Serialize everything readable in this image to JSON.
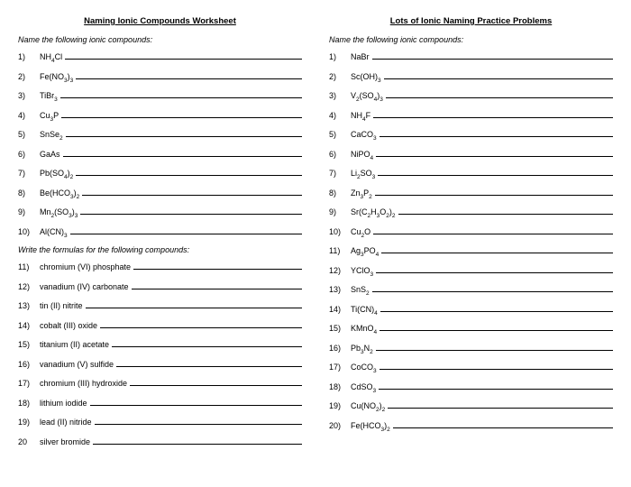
{
  "left": {
    "title": "Naming Ionic Compounds  Worksheet",
    "section1_instruction": "Name the following ionic compounds:",
    "section1_items": [
      {
        "n": "1)",
        "f": "NH<sub>4</sub>Cl"
      },
      {
        "n": "2)",
        "f": "Fe(NO<sub>3</sub>)<sub>3</sub>"
      },
      {
        "n": "3)",
        "f": "TiBr<sub>3</sub>"
      },
      {
        "n": "4)",
        "f": "Cu<sub>3</sub>P"
      },
      {
        "n": "5)",
        "f": "SnSe<sub>2</sub>"
      },
      {
        "n": "6)",
        "f": "GaAs"
      },
      {
        "n": "7)",
        "f": "Pb(SO<sub>4</sub>)<sub>2</sub>"
      },
      {
        "n": "8)",
        "f": "Be(HCO<sub>3</sub>)<sub>2</sub>"
      },
      {
        "n": "9)",
        "f": "Mn<sub>2</sub>(SO<sub>3</sub>)<sub>3</sub>"
      },
      {
        "n": "10)",
        "f": "Al(CN)<sub>3</sub>"
      }
    ],
    "section2_instruction": "Write the formulas for the following compounds:",
    "section2_items": [
      {
        "n": "11)",
        "f": "chromium (VI) phosphate"
      },
      {
        "n": "12)",
        "f": "vanadium (IV) carbonate"
      },
      {
        "n": "13)",
        "f": "tin (II) nitrite"
      },
      {
        "n": "14)",
        "f": "cobalt (III) oxide"
      },
      {
        "n": "15)",
        "f": "titanium (II) acetate"
      },
      {
        "n": "16)",
        "f": "vanadium (V) sulfide"
      },
      {
        "n": "17)",
        "f": "chromium (III) hydroxide"
      },
      {
        "n": "18)",
        "f": "lithium iodide"
      },
      {
        "n": "19)",
        "f": "lead (II) nitride"
      },
      {
        "n": "20",
        "f": "silver bromide"
      }
    ]
  },
  "right": {
    "title": "Lots of Ionic Naming Practice Problems",
    "instruction": "Name the following ionic compounds:",
    "items": [
      {
        "n": "1)",
        "f": "NaBr"
      },
      {
        "n": "2)",
        "f": "Sc(OH)<sub>3</sub>"
      },
      {
        "n": "3)",
        "f": "V<sub>2</sub>(SO<sub>4</sub>)<sub>3</sub>"
      },
      {
        "n": "4)",
        "f": "NH<sub>4</sub>F"
      },
      {
        "n": "5)",
        "f": "CaCO<sub>3</sub>"
      },
      {
        "n": "6)",
        "f": "NiPO<sub>4</sub>"
      },
      {
        "n": "7)",
        "f": "Li<sub>2</sub>SO<sub>3</sub>"
      },
      {
        "n": "8)",
        "f": "Zn<sub>3</sub>P<sub>2</sub>"
      },
      {
        "n": "9)",
        "f": "Sr(C<sub>2</sub>H<sub>3</sub>O<sub>2</sub>)<sub>2</sub>"
      },
      {
        "n": "10)",
        "f": "Cu<sub>2</sub>O"
      },
      {
        "n": "11)",
        "f": "Ag<sub>3</sub>PO<sub>4</sub>"
      },
      {
        "n": "12)",
        "f": "YClO<sub>3</sub>"
      },
      {
        "n": "13)",
        "f": "SnS<sub>2</sub>"
      },
      {
        "n": "14)",
        "f": "Ti(CN)<sub>4</sub>"
      },
      {
        "n": "15)",
        "f": "KMnO<sub>4</sub>"
      },
      {
        "n": "16)",
        "f": "Pb<sub>3</sub>N<sub>2</sub>"
      },
      {
        "n": "17)",
        "f": "CoCO<sub>3</sub>"
      },
      {
        "n": "18)",
        "f": "CdSO<sub>3</sub>"
      },
      {
        "n": "19)",
        "f": "Cu(NO<sub>2</sub>)<sub>2</sub>"
      },
      {
        "n": "20)",
        "f": "Fe(HCO<sub>3</sub>)<sub>2</sub>"
      }
    ]
  }
}
